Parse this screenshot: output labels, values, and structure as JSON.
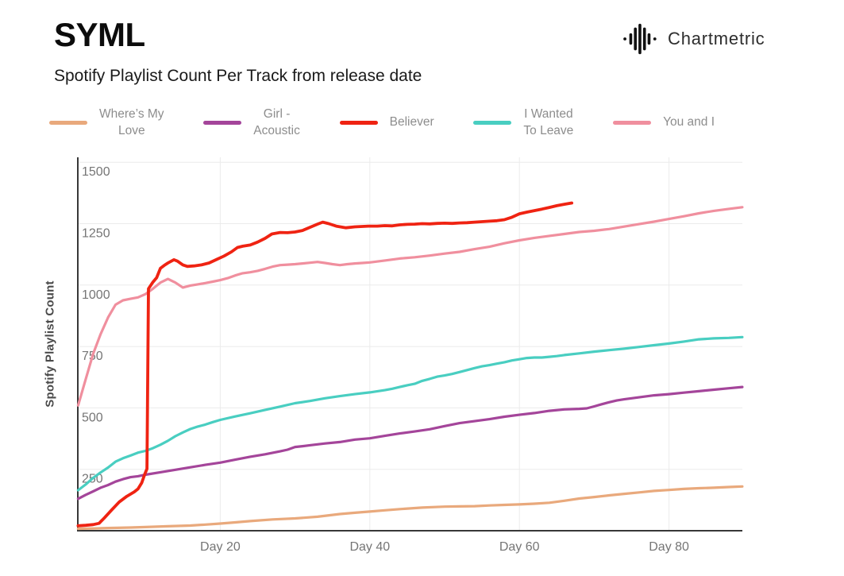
{
  "header": {
    "artist": "SYML",
    "subtitle": "Spotify Playlist Count Per Track from release date",
    "brand": "Chartmetric",
    "brand_icon": "chartmetric-waveform-icon"
  },
  "chart_data": {
    "type": "line",
    "title": "Spotify Playlist Count Per Track from release date",
    "xlabel": "",
    "ylabel": "Spotify Playlist Count",
    "x_ticks": [
      "Day 20",
      "Day 40",
      "Day 60",
      "Day 80"
    ],
    "x_tick_days": [
      20,
      40,
      60,
      80
    ],
    "y_ticks": [
      250,
      500,
      750,
      1000,
      1250,
      1500
    ],
    "xlim_days": [
      1,
      89.8
    ],
    "ylim": [
      0,
      1520
    ],
    "grid": true,
    "legend_position": "top",
    "style": {
      "grid_color": "#ebebeb",
      "axis_color": "#383838",
      "tick_color": "#757575",
      "line_width": 3.2
    },
    "draw_order": [
      0,
      1,
      3,
      4,
      2
    ],
    "series": [
      {
        "id": "wheres-my-love",
        "name": "Where’s My Love",
        "label_lines": [
          "Where’s My",
          "Love"
        ],
        "color": "#E9A97C",
        "points": [
          [
            1,
            8
          ],
          [
            3,
            9
          ],
          [
            5,
            11
          ],
          [
            8,
            13
          ],
          [
            10,
            15
          ],
          [
            13,
            18
          ],
          [
            16,
            21
          ],
          [
            18,
            25
          ],
          [
            20,
            29
          ],
          [
            22,
            34
          ],
          [
            24,
            39
          ],
          [
            27,
            46
          ],
          [
            30,
            50
          ],
          [
            33,
            57
          ],
          [
            36,
            68
          ],
          [
            38,
            73
          ],
          [
            40,
            78
          ],
          [
            42,
            83
          ],
          [
            44,
            88
          ],
          [
            47,
            94
          ],
          [
            50,
            98
          ],
          [
            52,
            99
          ],
          [
            54,
            100
          ],
          [
            56,
            103
          ],
          [
            58,
            105
          ],
          [
            60,
            107
          ],
          [
            62,
            110
          ],
          [
            64,
            114
          ],
          [
            66,
            122
          ],
          [
            68,
            131
          ],
          [
            70,
            137
          ],
          [
            72,
            144
          ],
          [
            74,
            150
          ],
          [
            76,
            156
          ],
          [
            78,
            162
          ],
          [
            80,
            166
          ],
          [
            82,
            170
          ],
          [
            84,
            173
          ],
          [
            86,
            175
          ],
          [
            88,
            178
          ],
          [
            89.8,
            180
          ]
        ]
      },
      {
        "id": "girl-acoustic",
        "name": "Girl - Acoustic",
        "label_lines": [
          "Girl -",
          "Acoustic"
        ],
        "color": "#A4459A",
        "points": [
          [
            1,
            130
          ],
          [
            2,
            146
          ],
          [
            3,
            160
          ],
          [
            4,
            175
          ],
          [
            5,
            186
          ],
          [
            6,
            200
          ],
          [
            7,
            210
          ],
          [
            8,
            218
          ],
          [
            9,
            222
          ],
          [
            10,
            228
          ],
          [
            12,
            238
          ],
          [
            14,
            248
          ],
          [
            16,
            258
          ],
          [
            18,
            268
          ],
          [
            20,
            277
          ],
          [
            22,
            289
          ],
          [
            24,
            301
          ],
          [
            26,
            311
          ],
          [
            28,
            323
          ],
          [
            29,
            330
          ],
          [
            30,
            341
          ],
          [
            31,
            344
          ],
          [
            32,
            348
          ],
          [
            34,
            355
          ],
          [
            36,
            361
          ],
          [
            38,
            371
          ],
          [
            40,
            376
          ],
          [
            42,
            386
          ],
          [
            44,
            396
          ],
          [
            46,
            404
          ],
          [
            48,
            413
          ],
          [
            50,
            426
          ],
          [
            52,
            438
          ],
          [
            54,
            446
          ],
          [
            56,
            454
          ],
          [
            58,
            464
          ],
          [
            60,
            472
          ],
          [
            62,
            479
          ],
          [
            64,
            488
          ],
          [
            66,
            494
          ],
          [
            68,
            496
          ],
          [
            69,
            498
          ],
          [
            70,
            506
          ],
          [
            71,
            515
          ],
          [
            72,
            523
          ],
          [
            73,
            530
          ],
          [
            74,
            535
          ],
          [
            76,
            543
          ],
          [
            78,
            551
          ],
          [
            80,
            556
          ],
          [
            82,
            562
          ],
          [
            84,
            568
          ],
          [
            86,
            574
          ],
          [
            88,
            580
          ],
          [
            89.8,
            585
          ]
        ]
      },
      {
        "id": "believer",
        "name": "Believer",
        "label_lines": [
          "Believer"
        ],
        "color": "#EF2312",
        "width": 3.8,
        "points": [
          [
            1,
            20
          ],
          [
            2,
            22
          ],
          [
            3,
            25
          ],
          [
            3.8,
            30
          ],
          [
            4.5,
            52
          ],
          [
            5.5,
            85
          ],
          [
            6.5,
            117
          ],
          [
            7.5,
            140
          ],
          [
            8.5,
            158
          ],
          [
            9,
            170
          ],
          [
            9.5,
            195
          ],
          [
            9.9,
            230
          ],
          [
            10.2,
            252
          ],
          [
            10.4,
            985
          ],
          [
            11,
            1012
          ],
          [
            11.5,
            1030
          ],
          [
            12,
            1068
          ],
          [
            12.5,
            1080
          ],
          [
            13,
            1090
          ],
          [
            13.8,
            1103
          ],
          [
            14.3,
            1097
          ],
          [
            15,
            1082
          ],
          [
            15.6,
            1076
          ],
          [
            16.5,
            1078
          ],
          [
            17.5,
            1082
          ],
          [
            18.5,
            1090
          ],
          [
            19.5,
            1104
          ],
          [
            20.5,
            1118
          ],
          [
            21.5,
            1135
          ],
          [
            22.3,
            1153
          ],
          [
            23,
            1158
          ],
          [
            24,
            1163
          ],
          [
            25,
            1175
          ],
          [
            26,
            1190
          ],
          [
            26.9,
            1208
          ],
          [
            28,
            1214
          ],
          [
            29,
            1213
          ],
          [
            30,
            1216
          ],
          [
            31,
            1222
          ],
          [
            32,
            1235
          ],
          [
            33,
            1248
          ],
          [
            33.7,
            1256
          ],
          [
            34.5,
            1250
          ],
          [
            35.5,
            1240
          ],
          [
            36.8,
            1233
          ],
          [
            38,
            1237
          ],
          [
            39.8,
            1240
          ],
          [
            41,
            1240
          ],
          [
            42,
            1242
          ],
          [
            43,
            1241
          ],
          [
            44,
            1245
          ],
          [
            45,
            1247
          ],
          [
            46,
            1248
          ],
          [
            47,
            1250
          ],
          [
            48,
            1249
          ],
          [
            49,
            1251
          ],
          [
            50,
            1252
          ],
          [
            51,
            1251
          ],
          [
            52,
            1253
          ],
          [
            53,
            1254
          ],
          [
            54,
            1256
          ],
          [
            55,
            1258
          ],
          [
            56,
            1260
          ],
          [
            57,
            1262
          ],
          [
            58,
            1266
          ],
          [
            59,
            1276
          ],
          [
            60,
            1290
          ],
          [
            61,
            1297
          ],
          [
            62,
            1303
          ],
          [
            63,
            1309
          ],
          [
            64,
            1316
          ],
          [
            65,
            1323
          ],
          [
            66,
            1329
          ],
          [
            67,
            1334
          ]
        ]
      },
      {
        "id": "i-wanted-to-leave",
        "name": "I Wanted To Leave",
        "label_lines": [
          "I Wanted",
          "To Leave"
        ],
        "color": "#49CEC1",
        "points": [
          [
            1,
            165
          ],
          [
            2,
            188
          ],
          [
            3,
            215
          ],
          [
            4,
            237
          ],
          [
            5,
            257
          ],
          [
            6,
            281
          ],
          [
            7,
            295
          ],
          [
            8,
            306
          ],
          [
            9,
            318
          ],
          [
            10,
            325
          ],
          [
            11,
            336
          ],
          [
            12,
            350
          ],
          [
            13,
            366
          ],
          [
            14,
            385
          ],
          [
            15,
            400
          ],
          [
            16,
            414
          ],
          [
            17,
            424
          ],
          [
            18,
            432
          ],
          [
            19,
            442
          ],
          [
            20,
            451
          ],
          [
            22,
            465
          ],
          [
            24,
            478
          ],
          [
            26,
            492
          ],
          [
            28,
            505
          ],
          [
            30,
            519
          ],
          [
            32,
            528
          ],
          [
            34,
            539
          ],
          [
            36,
            548
          ],
          [
            38,
            556
          ],
          [
            40,
            563
          ],
          [
            42,
            572
          ],
          [
            43,
            578
          ],
          [
            44,
            585
          ],
          [
            45,
            592
          ],
          [
            46,
            598
          ],
          [
            47,
            610
          ],
          [
            48,
            618
          ],
          [
            49,
            627
          ],
          [
            50,
            632
          ],
          [
            51,
            638
          ],
          [
            52,
            646
          ],
          [
            53,
            654
          ],
          [
            54,
            662
          ],
          [
            55,
            669
          ],
          [
            56,
            674
          ],
          [
            57,
            680
          ],
          [
            58,
            686
          ],
          [
            59,
            693
          ],
          [
            60,
            698
          ],
          [
            61,
            703
          ],
          [
            62,
            705
          ],
          [
            63,
            705
          ],
          [
            64,
            708
          ],
          [
            65,
            711
          ],
          [
            66,
            715
          ],
          [
            68,
            722
          ],
          [
            70,
            729
          ],
          [
            72,
            735
          ],
          [
            74,
            741
          ],
          [
            76,
            748
          ],
          [
            78,
            755
          ],
          [
            80,
            762
          ],
          [
            82,
            770
          ],
          [
            84,
            779
          ],
          [
            86,
            783
          ],
          [
            88,
            785
          ],
          [
            89.8,
            788
          ]
        ]
      },
      {
        "id": "you-and-i",
        "name": "You and I",
        "label_lines": [
          "You and I"
        ],
        "color": "#F08F9E",
        "points": [
          [
            1,
            510
          ],
          [
            2,
            615
          ],
          [
            3,
            720
          ],
          [
            4,
            800
          ],
          [
            5,
            868
          ],
          [
            6,
            920
          ],
          [
            7,
            938
          ],
          [
            8,
            944
          ],
          [
            9,
            950
          ],
          [
            10,
            963
          ],
          [
            11,
            985
          ],
          [
            12,
            1010
          ],
          [
            13,
            1025
          ],
          [
            14,
            1010
          ],
          [
            15,
            990
          ],
          [
            16,
            998
          ],
          [
            17,
            1003
          ],
          [
            18,
            1008
          ],
          [
            19,
            1014
          ],
          [
            20,
            1020
          ],
          [
            21,
            1028
          ],
          [
            22,
            1039
          ],
          [
            23,
            1048
          ],
          [
            24,
            1052
          ],
          [
            25,
            1058
          ],
          [
            26,
            1066
          ],
          [
            27,
            1075
          ],
          [
            28,
            1081
          ],
          [
            29,
            1083
          ],
          [
            30,
            1085
          ],
          [
            31,
            1088
          ],
          [
            32,
            1091
          ],
          [
            33,
            1094
          ],
          [
            34,
            1090
          ],
          [
            35,
            1085
          ],
          [
            36,
            1081
          ],
          [
            37,
            1085
          ],
          [
            38,
            1088
          ],
          [
            39,
            1090
          ],
          [
            40,
            1092
          ],
          [
            42,
            1100
          ],
          [
            44,
            1108
          ],
          [
            46,
            1113
          ],
          [
            48,
            1120
          ],
          [
            50,
            1128
          ],
          [
            52,
            1135
          ],
          [
            54,
            1146
          ],
          [
            56,
            1156
          ],
          [
            58,
            1170
          ],
          [
            60,
            1182
          ],
          [
            62,
            1192
          ],
          [
            64,
            1200
          ],
          [
            66,
            1208
          ],
          [
            68,
            1216
          ],
          [
            70,
            1221
          ],
          [
            72,
            1228
          ],
          [
            74,
            1238
          ],
          [
            76,
            1248
          ],
          [
            78,
            1258
          ],
          [
            80,
            1269
          ],
          [
            82,
            1280
          ],
          [
            84,
            1292
          ],
          [
            86,
            1302
          ],
          [
            88,
            1310
          ],
          [
            89.8,
            1317
          ]
        ]
      }
    ]
  }
}
